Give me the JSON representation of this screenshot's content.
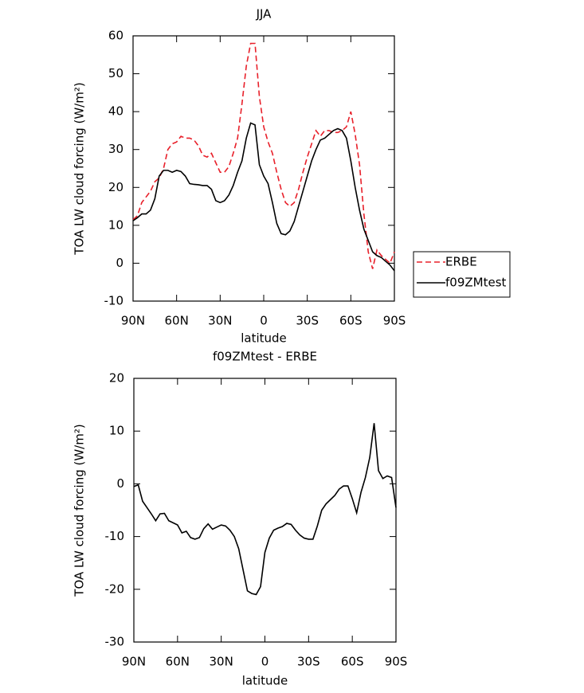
{
  "chart_data": [
    {
      "type": "line",
      "title": "JJA",
      "xlabel": "latitude",
      "ylabel": "TOA LW cloud forcing (W/m²)",
      "x": [
        90,
        87,
        84,
        81,
        78,
        75,
        72,
        69,
        66,
        63,
        60,
        57,
        54,
        51,
        48,
        45,
        42,
        39,
        36,
        33,
        30,
        27,
        24,
        21,
        18,
        15,
        12,
        9,
        6,
        3,
        0,
        -3,
        -6,
        -9,
        -12,
        -15,
        -18,
        -21,
        -24,
        -27,
        -30,
        -33,
        -36,
        -39,
        -42,
        -45,
        -48,
        -51,
        -54,
        -57,
        -60,
        -63,
        -66,
        -69,
        -72,
        -75,
        -78,
        -81,
        -84,
        -87,
        -90
      ],
      "series": [
        {
          "name": "ERBE",
          "color": "#e8202a",
          "linestyle": "dashed",
          "values": [
            11.5,
            12.5,
            16,
            17.5,
            19,
            21.5,
            22.5,
            25,
            30,
            31.5,
            32,
            33.5,
            33,
            33,
            32.5,
            31,
            28.5,
            28,
            29,
            26.5,
            24,
            24,
            25.5,
            29,
            33,
            42,
            52,
            58,
            58,
            44,
            36,
            32,
            29,
            24,
            19.5,
            16,
            15,
            16,
            19.5,
            24,
            28,
            31.5,
            35,
            33.5,
            35,
            35,
            34.5,
            34.5,
            35,
            36,
            40,
            34,
            26,
            13,
            3,
            -1.5,
            3.5,
            2,
            1,
            0,
            3
          ]
        },
        {
          "name": "f09ZMtest",
          "color": "#000000",
          "linestyle": "solid",
          "values": [
            11.2,
            12,
            13,
            13,
            14,
            17,
            23,
            24.5,
            24.5,
            24,
            24.5,
            24.2,
            23,
            21,
            20.8,
            20.7,
            20.5,
            20.5,
            19.5,
            16.5,
            16,
            16.5,
            18,
            20.5,
            24,
            27,
            33,
            37,
            36.5,
            26,
            23,
            21,
            16,
            10.5,
            7.8,
            7.5,
            8.5,
            11,
            15,
            19,
            23,
            27,
            30,
            32.5,
            33,
            34,
            35,
            35.5,
            35,
            33,
            27,
            20,
            14,
            9,
            6,
            3,
            2,
            1.5,
            0.5,
            -0.5,
            -2
          ]
        }
      ],
      "xlim": [
        90,
        -90
      ],
      "ylim": [
        -10,
        60
      ],
      "xticks": [
        {
          "value": 90,
          "label": "90N"
        },
        {
          "value": 60,
          "label": "60N"
        },
        {
          "value": 30,
          "label": "30N"
        },
        0,
        {
          "value": -30,
          "label": "30S"
        },
        {
          "value": -60,
          "label": "60S"
        },
        {
          "value": -90,
          "label": "90S"
        }
      ],
      "yticks": [
        -10,
        0,
        10,
        20,
        30,
        40,
        50,
        60
      ],
      "legend": "right"
    },
    {
      "type": "line",
      "title": "f09ZMtest - ERBE",
      "xlabel": "latitude",
      "ylabel": "TOA LW cloud forcing (W/m²)",
      "x": [
        90,
        87,
        84,
        81,
        78,
        75,
        72,
        69,
        66,
        63,
        60,
        57,
        54,
        51,
        48,
        45,
        42,
        39,
        36,
        33,
        30,
        27,
        24,
        21,
        18,
        15,
        12,
        9,
        6,
        3,
        0,
        -3,
        -6,
        -9,
        -12,
        -15,
        -18,
        -21,
        -24,
        -27,
        -30,
        -33,
        -36,
        -39,
        -42,
        -45,
        -48,
        -51,
        -54,
        -57,
        -60,
        -63,
        -66,
        -69,
        -72,
        -75,
        -78,
        -81,
        -84,
        -87,
        -90
      ],
      "series": [
        {
          "color": "#000000",
          "linestyle": "solid",
          "values": [
            -0.5,
            -0.2,
            -3.3,
            -4.5,
            -5.7,
            -7,
            -5.7,
            -5.6,
            -7,
            -7.4,
            -7.8,
            -9.3,
            -9,
            -10.2,
            -10.5,
            -10.2,
            -8.5,
            -7.6,
            -8.6,
            -8.2,
            -7.8,
            -8,
            -8.8,
            -10,
            -12.3,
            -16.3,
            -20.3,
            -20.8,
            -21,
            -19.5,
            -13,
            -10.3,
            -8.8,
            -8.4,
            -8.1,
            -7.5,
            -7.7,
            -8.8,
            -9.7,
            -10.3,
            -10.5,
            -10.5,
            -8,
            -5,
            -3.8,
            -3,
            -2.2,
            -1,
            -0.4,
            -0.4,
            -2.8,
            -5.5,
            -1.6,
            1.2,
            5,
            11.5,
            2.5,
            1,
            1.5,
            1.2,
            -4.5
          ]
        }
      ],
      "xlim": [
        90,
        -90
      ],
      "ylim": [
        -30,
        20
      ],
      "xticks": [
        {
          "value": 90,
          "label": "90N"
        },
        {
          "value": 60,
          "label": "60N"
        },
        {
          "value": 30,
          "label": "30N"
        },
        0,
        {
          "value": -30,
          "label": "30S"
        },
        {
          "value": -60,
          "label": "60S"
        },
        {
          "value": -90,
          "label": "90S"
        }
      ],
      "yticks": [
        -30,
        -20,
        -10,
        0,
        10,
        20
      ]
    }
  ]
}
